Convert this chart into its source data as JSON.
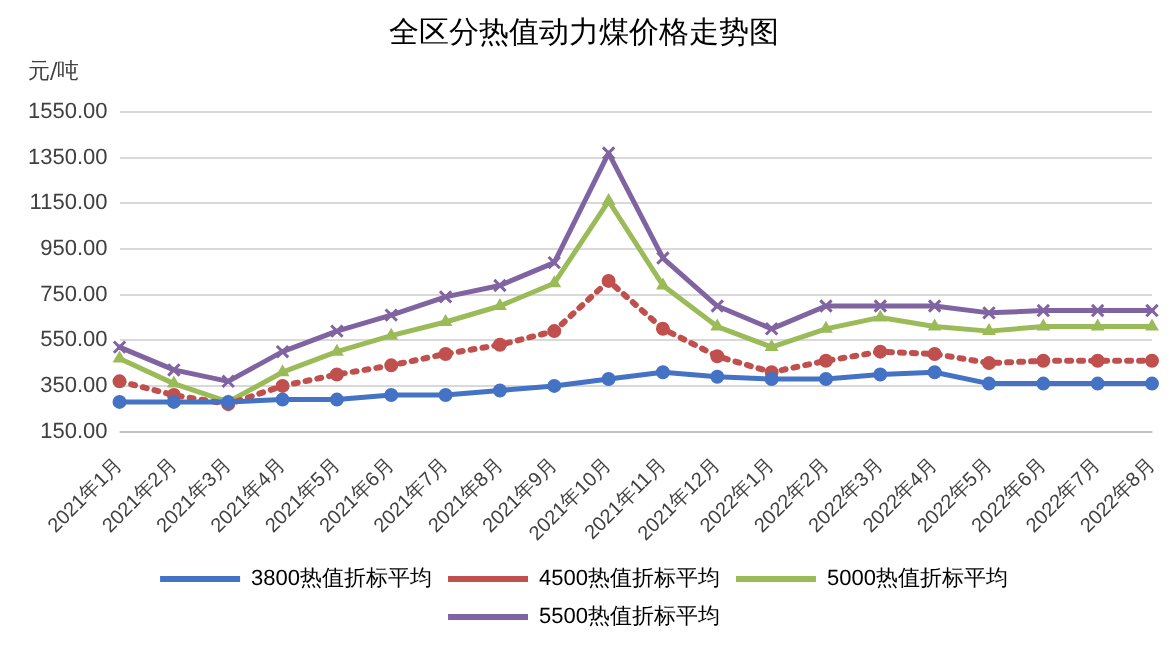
{
  "chart_data": {
    "type": "line",
    "title": "全区分热值动力煤价格走势图",
    "ylabel": "元/吨",
    "categories": [
      "2021年1月",
      "2021年2月",
      "2021年3月",
      "2021年4月",
      "2021年5月",
      "2021年6月",
      "2021年7月",
      "2021年8月",
      "2021年9月",
      "2021年10月",
      "2021年11月",
      "2021年12月",
      "2022年1月",
      "2022年2月",
      "2022年3月",
      "2022年4月",
      "2022年5月",
      "2022年6月",
      "2022年7月",
      "2022年8月"
    ],
    "series": [
      {
        "name": "3800热值折标平均",
        "color": "#4472c4",
        "marker": "circle",
        "line_style": "solid",
        "values": [
          280,
          280,
          280,
          290,
          290,
          310,
          310,
          330,
          350,
          380,
          410,
          390,
          380,
          380,
          400,
          410,
          360,
          360,
          360,
          360
        ]
      },
      {
        "name": "4500热值折标平均",
        "color": "#c0504d",
        "marker": "circle",
        "line_style": "dotted",
        "values": [
          370,
          310,
          270,
          350,
          400,
          440,
          490,
          530,
          590,
          810,
          600,
          480,
          410,
          460,
          500,
          490,
          450,
          460,
          460,
          460
        ]
      },
      {
        "name": "5000热值折标平均",
        "color": "#9bbb59",
        "marker": "triangle",
        "line_style": "solid",
        "values": [
          470,
          360,
          280,
          410,
          500,
          570,
          630,
          700,
          800,
          1160,
          790,
          610,
          520,
          600,
          650,
          610,
          590,
          610,
          610,
          610
        ]
      },
      {
        "name": "5500热值折标平均",
        "color": "#8064a2",
        "marker": "cross",
        "line_style": "solid",
        "values": [
          520,
          420,
          370,
          500,
          590,
          660,
          740,
          790,
          890,
          1370,
          910,
          700,
          600,
          700,
          700,
          700,
          670,
          680,
          680,
          680
        ]
      }
    ],
    "ylim": [
      150,
      1550
    ],
    "yticks": [
      {
        "value": 150,
        "label": "150.00"
      },
      {
        "value": 350,
        "label": "350.00"
      },
      {
        "value": 550,
        "label": "550.00"
      },
      {
        "value": 750,
        "label": "750.00"
      },
      {
        "value": 950,
        "label": "950.00"
      },
      {
        "value": 1150,
        "label": "1150.00"
      },
      {
        "value": 1350,
        "label": "1350.00"
      },
      {
        "value": 1550,
        "label": "1550.00"
      }
    ],
    "grid": "y",
    "legend": "bottom"
  }
}
